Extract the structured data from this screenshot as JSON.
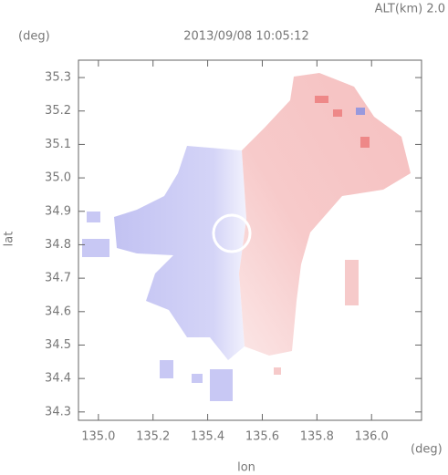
{
  "chart_data": {
    "type": "image",
    "title": "2013/09/08 10:05:12",
    "annotation": "ALT(km) 2.0",
    "x_unit": "(deg)",
    "y_unit": "(deg)",
    "xlabel": "lon",
    "ylabel": "lat",
    "xlim": [
      134.927,
      136.183
    ],
    "ylim": [
      34.275,
      35.352
    ],
    "xticks": [
      {
        "value": 135.0,
        "label": "135.0"
      },
      135.2,
      135.4,
      135.6,
      135.8,
      {
        "value": 136.0,
        "label": "136.0"
      }
    ],
    "yticks": [
      34.3,
      34.4,
      34.5,
      34.6,
      34.7,
      34.8,
      34.9,
      {
        "value": 35.0,
        "label": "35.0"
      },
      35.1,
      35.2,
      35.3
    ]
  }
}
